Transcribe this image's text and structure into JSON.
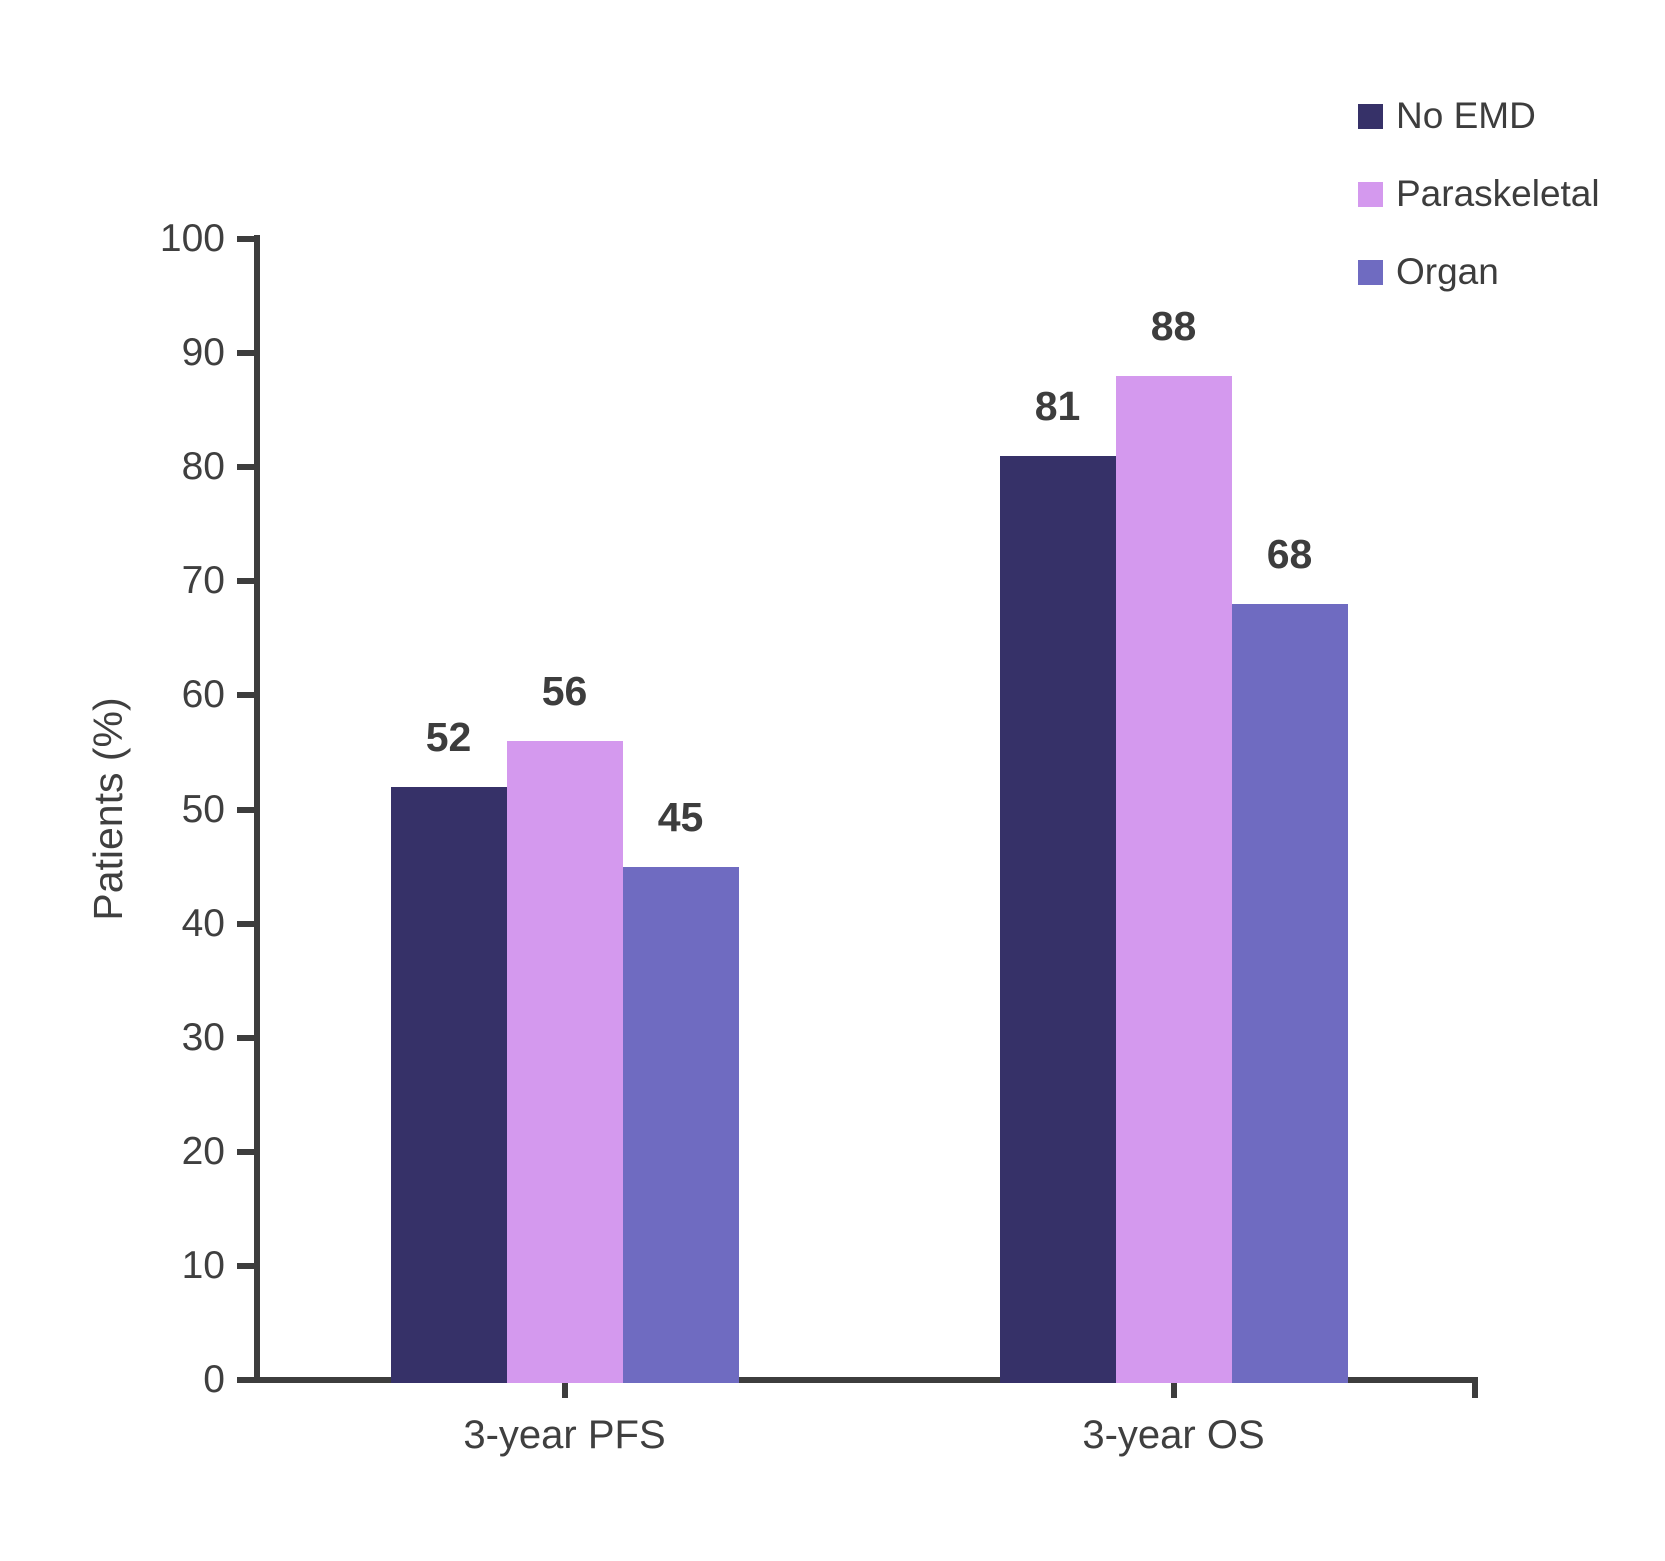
{
  "chart_data": {
    "type": "bar",
    "title": "",
    "xlabel": "",
    "ylabel": "Patients (%)",
    "ylim": [
      0,
      100
    ],
    "yticks": [
      0,
      10,
      20,
      30,
      40,
      50,
      60,
      70,
      80,
      90,
      100
    ],
    "categories": [
      "3-year PFS",
      "3-year OS"
    ],
    "series": [
      {
        "name": "No EMD",
        "color": "#363168",
        "values": [
          52,
          81
        ]
      },
      {
        "name": "Paraskeletal",
        "color": "#d499ee",
        "values": [
          56,
          88
        ]
      },
      {
        "name": "Organ",
        "color": "#6f6bc1",
        "values": [
          45,
          68
        ]
      }
    ],
    "bar_value_labels": [
      [
        52,
        56,
        45
      ],
      [
        81,
        88,
        68
      ]
    ],
    "legend_position": "top-right",
    "grid": false
  },
  "colors": {
    "axis": "#3d3d3d",
    "label_text": "#3f3f3f",
    "value_label_text": "#3d3d3d",
    "background": "#ffffff"
  }
}
